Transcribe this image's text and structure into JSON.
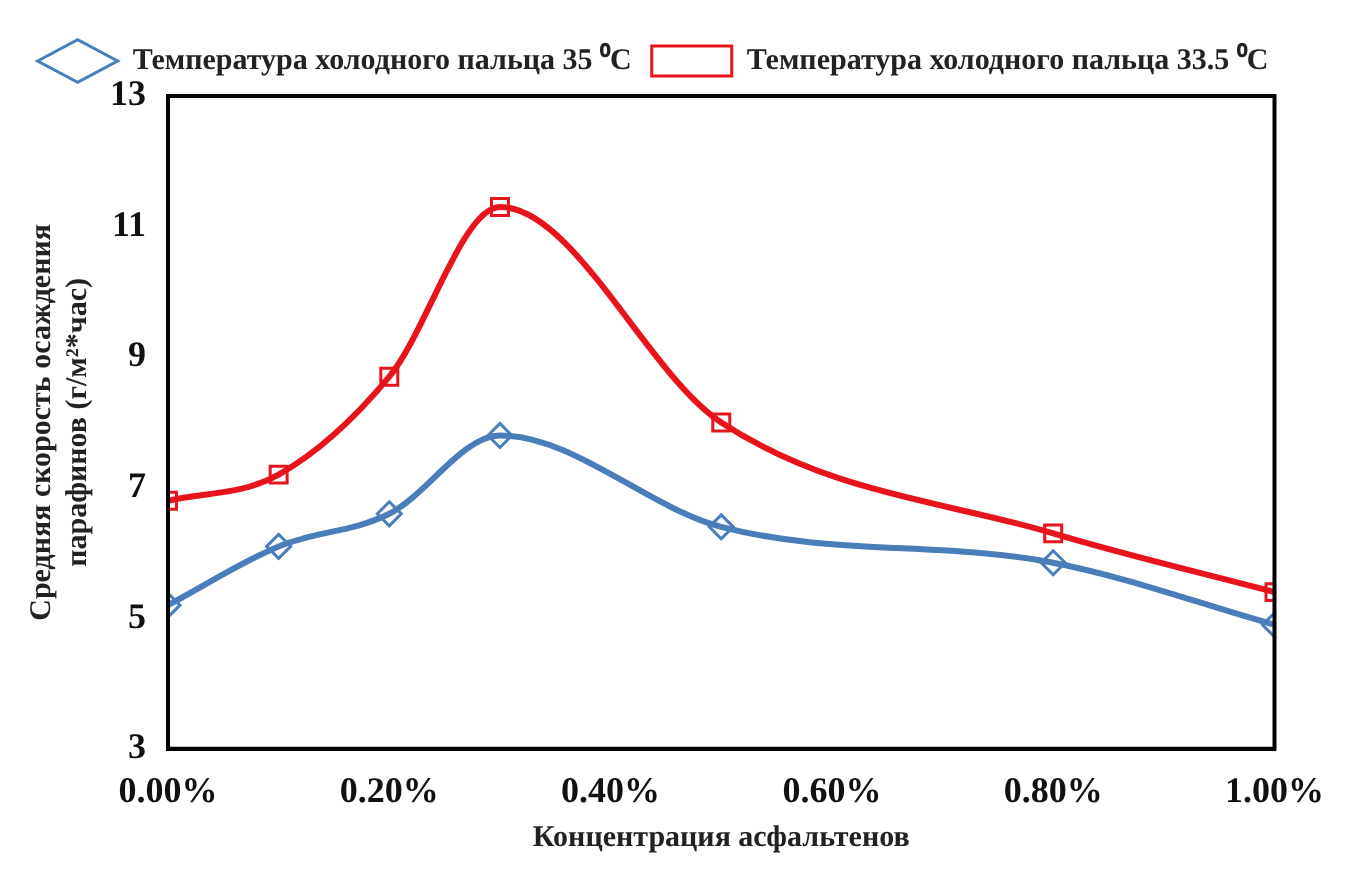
{
  "chart_data": {
    "type": "line",
    "xlabel": "Концентрация асфальтенов",
    "ylabel": "Средняя скорость осаждения парафинов (г/м²*час)",
    "x": [
      0,
      0.1,
      0.2,
      0.3,
      0.5,
      0.8,
      1.0
    ],
    "series": [
      {
        "name": "Температура холодного пальца 35 ⁰C",
        "color": "#4a7ebb",
        "marker": "diamond",
        "values": [
          5.2,
          6.1,
          6.6,
          7.8,
          6.4,
          5.85,
          4.9
        ]
      },
      {
        "name": "Температура холодного пальца 33.5 ⁰C",
        "color": "#e8141b",
        "marker": "square",
        "values": [
          6.8,
          7.2,
          8.7,
          11.3,
          8.0,
          6.3,
          5.4
        ]
      }
    ],
    "xlim": [
      0,
      1
    ],
    "xticks": [
      {
        "value": 0,
        "label": "0.00%"
      },
      {
        "value": 0.2,
        "label": "0.20%"
      },
      {
        "value": 0.4,
        "label": "0.40%"
      },
      {
        "value": 0.6,
        "label": "0.60%"
      },
      {
        "value": 0.8,
        "label": "0.80%"
      },
      {
        "value": 1,
        "label": "1.00%"
      }
    ],
    "ylim": [
      3,
      13
    ],
    "yticks": [
      3,
      5,
      7,
      9,
      11,
      13
    ],
    "grid": false,
    "legend": "top"
  }
}
